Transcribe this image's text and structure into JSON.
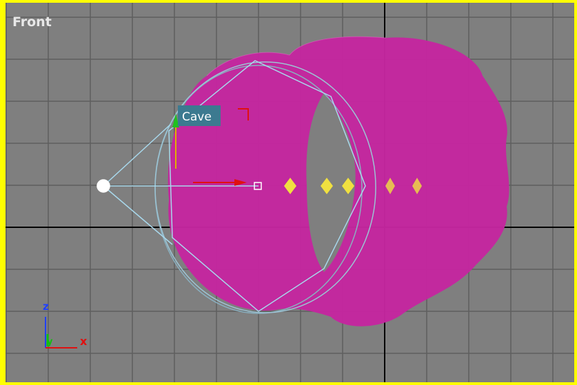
{
  "viewport": {
    "label": "Front"
  },
  "object": {
    "label": "Cave"
  },
  "axes": {
    "z": "z",
    "y": "y",
    "x": "x"
  }
}
